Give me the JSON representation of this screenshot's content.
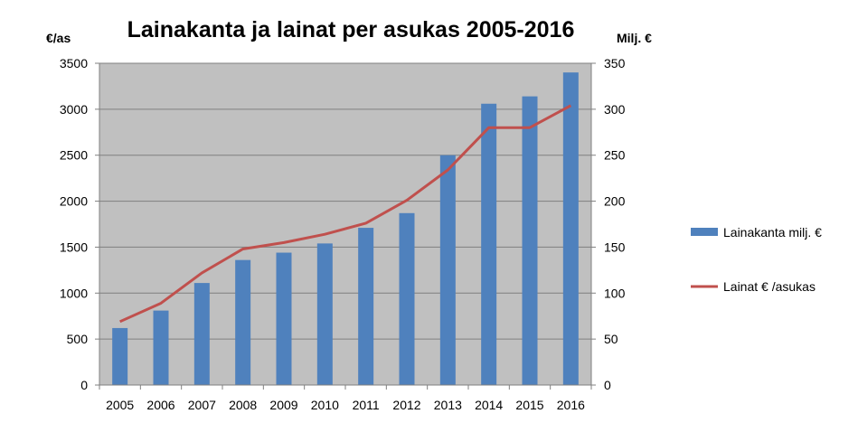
{
  "chart_data": {
    "type": "bar",
    "title": "Lainakanta ja lainat per asukas 2005-2016",
    "left_axis_unit": "€/as",
    "right_axis_unit": "Milj. €",
    "categories": [
      "2005",
      "2006",
      "2007",
      "2008",
      "2009",
      "2010",
      "2011",
      "2012",
      "2013",
      "2014",
      "2015",
      "2016"
    ],
    "left_axis": {
      "min": 0,
      "max": 3500,
      "step": 500,
      "ticks": [
        "0",
        "500",
        "1000",
        "1500",
        "2000",
        "2500",
        "3000",
        "3500"
      ]
    },
    "right_axis": {
      "min": 0,
      "max": 350,
      "step": 50,
      "ticks": [
        "0",
        "50",
        "100",
        "150",
        "200",
        "250",
        "300",
        "350"
      ]
    },
    "series": [
      {
        "name": "Lainakanta milj. €",
        "type": "bar",
        "axis": "right",
        "color": "#4f81bd",
        "values": [
          62,
          81,
          111,
          136,
          144,
          154,
          171,
          187,
          250,
          306,
          314,
          340
        ]
      },
      {
        "name": "Lainat € /asukas",
        "type": "line",
        "axis": "left",
        "color": "#c0504d",
        "values": [
          690,
          890,
          1220,
          1480,
          1550,
          1640,
          1760,
          2010,
          2340,
          2800,
          2800,
          3040
        ]
      }
    ],
    "plot_background": "#c0c0c0",
    "grid": true,
    "legend_position": "right"
  }
}
